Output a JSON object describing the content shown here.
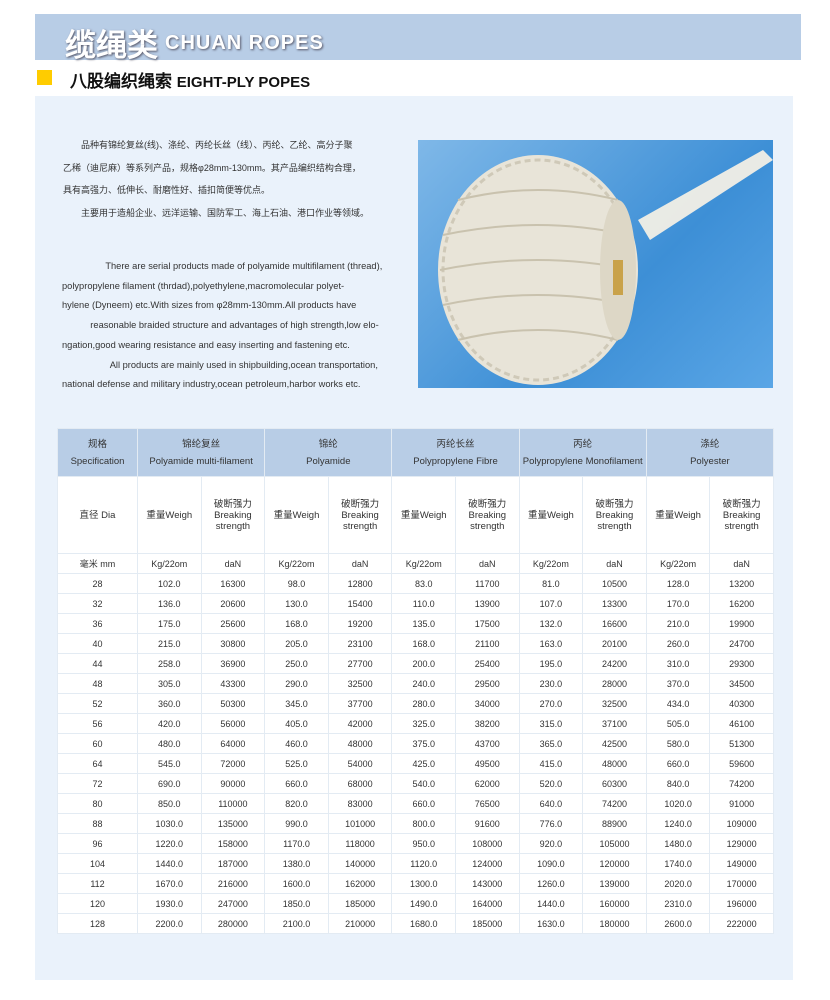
{
  "header": {
    "title_cn": "缆绳类",
    "title_en": "CHUAN ROPES"
  },
  "section": {
    "title_cn": "八股编织绳索",
    "title_en": "EIGHT-PLY POPES",
    "accent_color": "#ffcc00"
  },
  "description_cn": [
    "　　品种有锦纶复丝(线)、涤纶、丙纶长丝（线）、丙纶、乙纶、高分子聚",
    "乙稀（迪尼麻）等系列产品，规格φ28mm-130mm。其产品编织结构合理，",
    "具有高强力、低伸长、耐磨性好、插扣简便等优点。",
    "　　主要用于造船企业、远洋运输、国防军工、海上石油、港口作业等领域。"
  ],
  "description_en": [
    "　　There are serial products made of polyamide multifilament (thread),",
    "polypropylene filament (thrdad),polyethylene,macromolecular polyet-",
    "hylene (Dyneem) etc.With sizes from φ28mm-130mm.All products have",
    " reasonable braided structure and advantages of high strength,low elo-",
    "ngation,good wearing resistance and easy  inserting and fastening etc.",
    "　　All products are mainly used in shipbuilding,ocean transportation,",
    "national defense and military industry,ocean petroleum,harbor works etc."
  ],
  "photo": {
    "icon": "rope-coil-image"
  },
  "table": {
    "spec_cn": "规格",
    "spec_en": "Specification",
    "groups": [
      {
        "cn": "锦纶复丝",
        "en": "Polyamide multi-filament"
      },
      {
        "cn": "锦纶",
        "en": "Polyamide"
      },
      {
        "cn": "丙纶长丝",
        "en": "Polypropylene Fibre"
      },
      {
        "cn": "丙纶",
        "en": "Polypropylene Monofilament"
      },
      {
        "cn": "涤纶",
        "en": "Polyester"
      }
    ],
    "dia_label": "直径 Dia",
    "weight_label": "重量Weigh",
    "strength_cn": "破断强力",
    "strength_en1": "Breaking",
    "strength_en2": "strength",
    "unit_mm": "毫米 mm",
    "unit_weight": "Kg/22om",
    "unit_strength": "daN",
    "rows": [
      [
        "28",
        "102.0",
        "16300",
        "98.0",
        "12800",
        "83.0",
        "11700",
        "81.0",
        "10500",
        "128.0",
        "13200"
      ],
      [
        "32",
        "136.0",
        "20600",
        "130.0",
        "15400",
        "110.0",
        "13900",
        "107.0",
        "13300",
        "170.0",
        "16200"
      ],
      [
        "36",
        "175.0",
        "25600",
        "168.0",
        "19200",
        "135.0",
        "17500",
        "132.0",
        "16600",
        "210.0",
        "19900"
      ],
      [
        "40",
        "215.0",
        "30800",
        "205.0",
        "23100",
        "168.0",
        "21100",
        "163.0",
        "20100",
        "260.0",
        "24700"
      ],
      [
        "44",
        "258.0",
        "36900",
        "250.0",
        "27700",
        "200.0",
        "25400",
        "195.0",
        "24200",
        "310.0",
        "29300"
      ],
      [
        "48",
        "305.0",
        "43300",
        "290.0",
        "32500",
        "240.0",
        "29500",
        "230.0",
        "28000",
        "370.0",
        "34500"
      ],
      [
        "52",
        "360.0",
        "50300",
        "345.0",
        "37700",
        "280.0",
        "34000",
        "270.0",
        "32500",
        "434.0",
        "40300"
      ],
      [
        "56",
        "420.0",
        "56000",
        "405.0",
        "42000",
        "325.0",
        "38200",
        "315.0",
        "37100",
        "505.0",
        "46100"
      ],
      [
        "60",
        "480.0",
        "64000",
        "460.0",
        "48000",
        "375.0",
        "43700",
        "365.0",
        "42500",
        "580.0",
        "51300"
      ],
      [
        "64",
        "545.0",
        "72000",
        "525.0",
        "54000",
        "425.0",
        "49500",
        "415.0",
        "48000",
        "660.0",
        "59600"
      ],
      [
        "72",
        "690.0",
        "90000",
        "660.0",
        "68000",
        "540.0",
        "62000",
        "520.0",
        "60300",
        "840.0",
        "74200"
      ],
      [
        "80",
        "850.0",
        "110000",
        "820.0",
        "83000",
        "660.0",
        "76500",
        "640.0",
        "74200",
        "1020.0",
        "91000"
      ],
      [
        "88",
        "1030.0",
        "135000",
        "990.0",
        "101000",
        "800.0",
        "91600",
        "776.0",
        "88900",
        "1240.0",
        "109000"
      ],
      [
        "96",
        "1220.0",
        "158000",
        "1170.0",
        "118000",
        "950.0",
        "108000",
        "920.0",
        "105000",
        "1480.0",
        "129000"
      ],
      [
        "104",
        "1440.0",
        "187000",
        "1380.0",
        "140000",
        "1120.0",
        "124000",
        "1090.0",
        "120000",
        "1740.0",
        "149000"
      ],
      [
        "112",
        "1670.0",
        "216000",
        "1600.0",
        "162000",
        "1300.0",
        "143000",
        "1260.0",
        "139000",
        "2020.0",
        "170000"
      ],
      [
        "120",
        "1930.0",
        "247000",
        "1850.0",
        "185000",
        "1490.0",
        "164000",
        "1440.0",
        "160000",
        "2310.0",
        "196000"
      ],
      [
        "128",
        "2200.0",
        "280000",
        "2100.0",
        "210000",
        "1680.0",
        "185000",
        "1630.0",
        "180000",
        "2600.0",
        "222000"
      ]
    ]
  }
}
